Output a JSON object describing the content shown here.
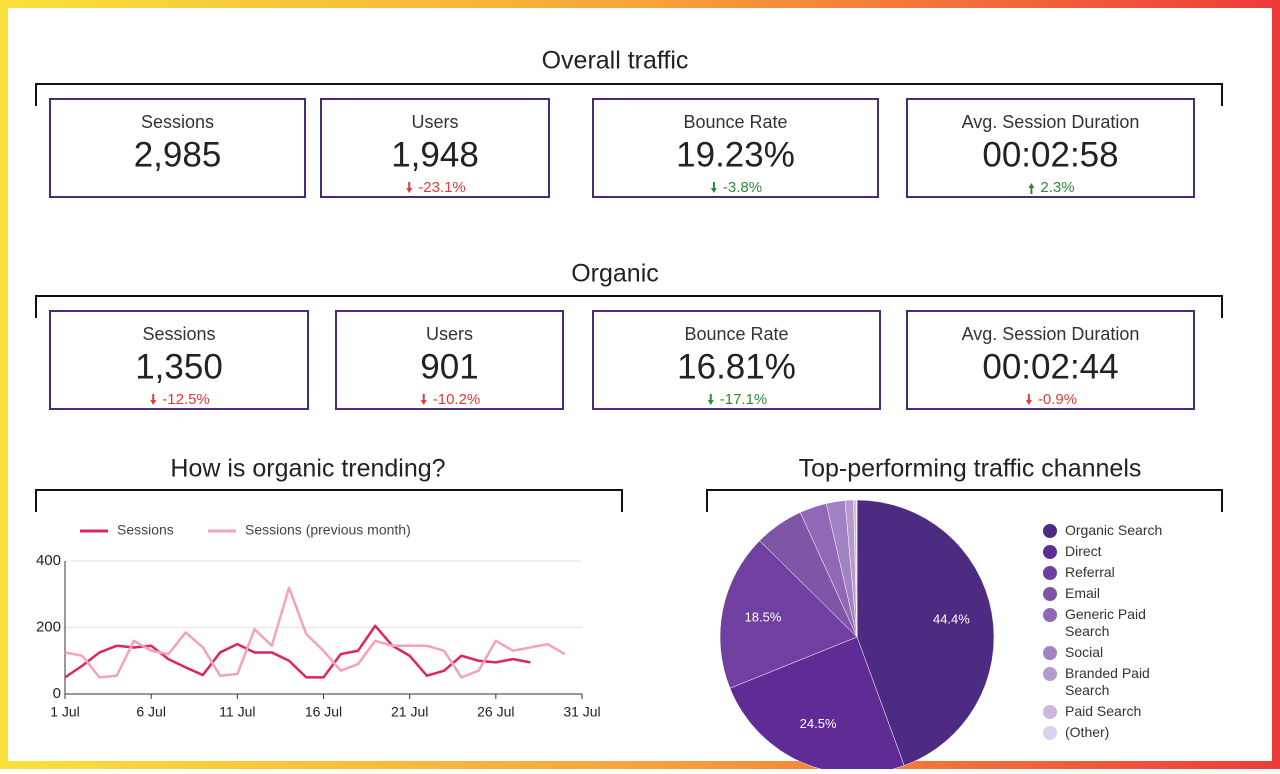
{
  "overall": {
    "title": "Overall traffic",
    "cards": [
      {
        "label": "Sessions",
        "value": "2,985"
      },
      {
        "label": "Users",
        "value": "1,948",
        "change": "-23.1%",
        "color": "#e53935"
      },
      {
        "label": "Bounce Rate",
        "value": "19.23%",
        "change": "-3.8%",
        "color": "#2e8b3a"
      },
      {
        "label": "Avg. Session Duration",
        "value": "00:02:58",
        "change": "2.3%",
        "color": "#2e8b3a"
      }
    ]
  },
  "organic": {
    "title": "Organic",
    "cards": [
      {
        "label": "Sessions",
        "value": "1,350",
        "change": "-12.5%",
        "color": "#e53935"
      },
      {
        "label": "Users",
        "value": "901",
        "change": "-10.2%",
        "color": "#e53935"
      },
      {
        "label": "Bounce Rate",
        "value": "16.81%",
        "change": "-17.1%",
        "color": "#2e8b3a"
      },
      {
        "label": "Avg. Session Duration",
        "value": "00:02:44",
        "change": "-0.9%",
        "color": "#e53935"
      }
    ]
  },
  "chart_data": [
    {
      "type": "line",
      "title": "How is organic trending?",
      "x": [
        1,
        2,
        3,
        4,
        5,
        6,
        7,
        8,
        9,
        10,
        11,
        12,
        13,
        14,
        15,
        16,
        17,
        18,
        19,
        20,
        21,
        22,
        23,
        24,
        25,
        26,
        27,
        28,
        29,
        30,
        31
      ],
      "xlim": [
        1,
        31
      ],
      "xticks": [
        {
          "value": 1,
          "label": "1 Jul"
        },
        {
          "value": 6,
          "label": "6 Jul"
        },
        {
          "value": 11,
          "label": "11 Jul"
        },
        {
          "value": 16,
          "label": "16 Jul"
        },
        {
          "value": 21,
          "label": "21 Jul"
        },
        {
          "value": 26,
          "label": "26 Jul"
        },
        {
          "value": 31,
          "label": "31 Jul"
        }
      ],
      "ylim": [
        0,
        400
      ],
      "yticks": [
        0,
        200,
        400
      ],
      "grid": true,
      "legend": "top",
      "series": [
        {
          "name": "Sessions",
          "color": "#e0245e",
          "values": [
            50,
            85,
            125,
            145,
            140,
            145,
            105,
            80,
            57,
            125,
            150,
            125,
            125,
            100,
            50,
            50,
            120,
            130,
            205,
            145,
            115,
            55,
            70,
            115,
            100,
            95,
            105,
            95,
            null,
            null,
            null
          ]
        },
        {
          "name": "Sessions (previous month)",
          "color": "#f4a0c0",
          "values": [
            125,
            115,
            50,
            55,
            160,
            130,
            120,
            185,
            140,
            55,
            60,
            195,
            145,
            320,
            180,
            130,
            70,
            90,
            160,
            145,
            145,
            145,
            130,
            50,
            70,
            160,
            130,
            140,
            150,
            120,
            null
          ]
        }
      ]
    },
    {
      "type": "pie",
      "title": "Top-performing traffic channels",
      "legend": "right",
      "categories": [
        "Organic Search",
        "Direct",
        "Referral",
        "Email",
        "Generic Paid Search",
        "Social",
        "Branded Paid Search",
        "Paid Search",
        "(Other)"
      ],
      "values": [
        44.4,
        24.5,
        18.5,
        5.8,
        3.2,
        2.2,
        1.0,
        0.3,
        0.1
      ],
      "value_labels": [
        "44.4%",
        "24.5%",
        "18.5%",
        null,
        null,
        null,
        null,
        null,
        null
      ],
      "colors": [
        "#4e2b82",
        "#5e2c94",
        "#7040a0",
        "#7f55a8",
        "#9068b5",
        "#a182c2",
        "#b59acd",
        "#cab7dc",
        "#ddd0ea"
      ]
    }
  ]
}
